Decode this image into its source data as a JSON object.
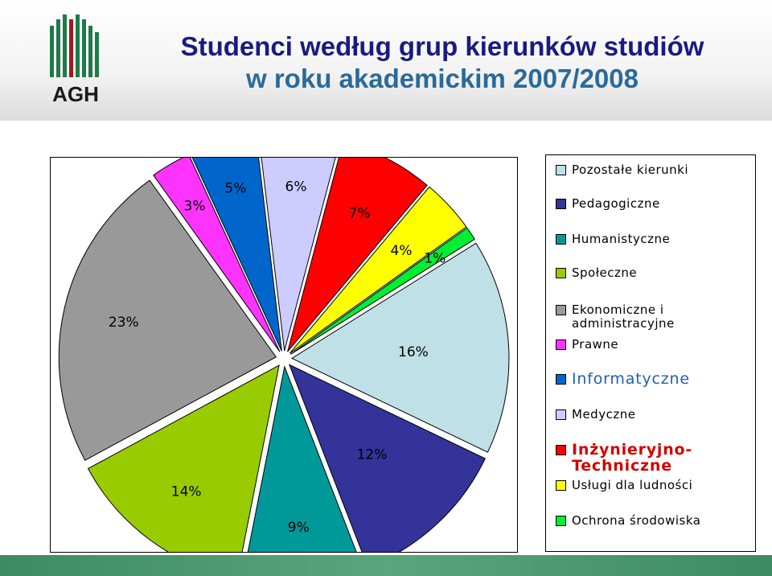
{
  "header": {
    "title_line1": "Studenci według grup kierunków studiów",
    "title_line2": "w roku akademickim 2007/2008",
    "logo_text": "AGH"
  },
  "colors": {
    "title": "#1a1a80",
    "logo_green": "#1f7a4a",
    "logo_red": "#a0191e",
    "bar": "#4a9a6e"
  },
  "chart_data": {
    "type": "pie",
    "title": "Studenci według grup kierunków studiów w roku akademickim 2007/2008",
    "legend_position": "right",
    "slices": [
      {
        "name": "Pozostałe kierunki",
        "value": 16,
        "label": "16%",
        "color": "#bfe0e6"
      },
      {
        "name": "Pedagogiczne",
        "value": 12,
        "label": "12%",
        "color": "#333399"
      },
      {
        "name": "Humanistyczne",
        "value": 9,
        "label": "9%",
        "color": "#009999"
      },
      {
        "name": "Społeczne",
        "value": 14,
        "label": "14%",
        "color": "#99cc00"
      },
      {
        "name": "Ekonomiczne i administracyjne",
        "value": 23,
        "label": "23%",
        "color": "#999999"
      },
      {
        "name": "Prawne",
        "value": 3,
        "label": "3%",
        "color": "#ff33ff"
      },
      {
        "name": "Informatyczne",
        "value": 5,
        "label": "5%",
        "color": "#0066cc"
      },
      {
        "name": "Medyczne",
        "value": 6,
        "label": "6%",
        "color": "#ccccff"
      },
      {
        "name": "Inżynieryjno-Techniczne",
        "value": 7,
        "label": "7%",
        "color": "#ff0000"
      },
      {
        "name": "Usługi dla ludności",
        "value": 4,
        "label": "4%",
        "color": "#ffff00"
      },
      {
        "name": "Ochrona środowiska",
        "value": 1,
        "label": "1%",
        "color": "#00ee33"
      }
    ]
  },
  "legend": {
    "items": [
      {
        "label": "Pozostałe kierunki",
        "color": "#bfe0e6",
        "style": "normal"
      },
      {
        "label": "Pedagogiczne",
        "color": "#333399",
        "style": "normal"
      },
      {
        "label": "Humanistyczne",
        "color": "#009999",
        "style": "normal"
      },
      {
        "label": "Społeczne",
        "color": "#99cc00",
        "style": "normal"
      },
      {
        "label": "Ekonomiczne i administracyjne",
        "color": "#999999",
        "style": "normal"
      },
      {
        "label": "Prawne",
        "color": "#ff33ff",
        "style": "normal"
      },
      {
        "label": "Informatyczne",
        "color": "#0066cc",
        "style": "big"
      },
      {
        "label": "Medyczne",
        "color": "#ccccff",
        "style": "normal"
      },
      {
        "label": "Inżynieryjno-Techniczne",
        "color": "#ff0000",
        "style": "red"
      },
      {
        "label": "Usługi dla ludności",
        "color": "#ffff00",
        "style": "normal"
      },
      {
        "label": "Ochrona środowiska",
        "color": "#00ee33",
        "style": "normal"
      }
    ]
  }
}
